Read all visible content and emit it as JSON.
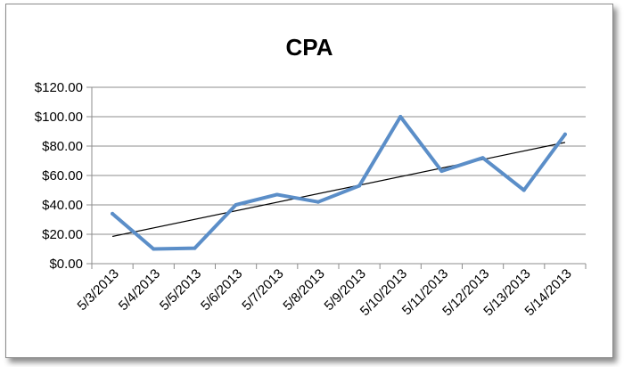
{
  "chart_data": {
    "type": "line",
    "title": "CPA",
    "xlabel": "",
    "ylabel": "",
    "categories": [
      "5/3/2013",
      "5/4/2013",
      "5/5/2013",
      "5/6/2013",
      "5/7/2013",
      "5/8/2013",
      "5/9/2013",
      "5/10/2013",
      "5/11/2013",
      "5/12/2013",
      "5/13/2013",
      "5/14/2013"
    ],
    "series": [
      {
        "values": [
          34,
          10,
          10.5,
          40,
          47,
          42,
          53,
          100,
          63,
          72,
          50,
          88
        ]
      }
    ],
    "trendline": {
      "type": "linear",
      "start": 18.5,
      "end": 82.5,
      "color": "#000000"
    },
    "y_tick_labels": [
      "$0.00",
      "$20.00",
      "$40.00",
      "$60.00",
      "$80.00",
      "$100.00",
      "$120.00"
    ],
    "ylim": [
      0,
      120
    ],
    "y_tick_step": 20,
    "grid": "horizontal",
    "legend": "none",
    "colors": {
      "series": "#5b8ec8",
      "gridline": "#8c8c8c",
      "axis": "#8c8c8c"
    }
  }
}
